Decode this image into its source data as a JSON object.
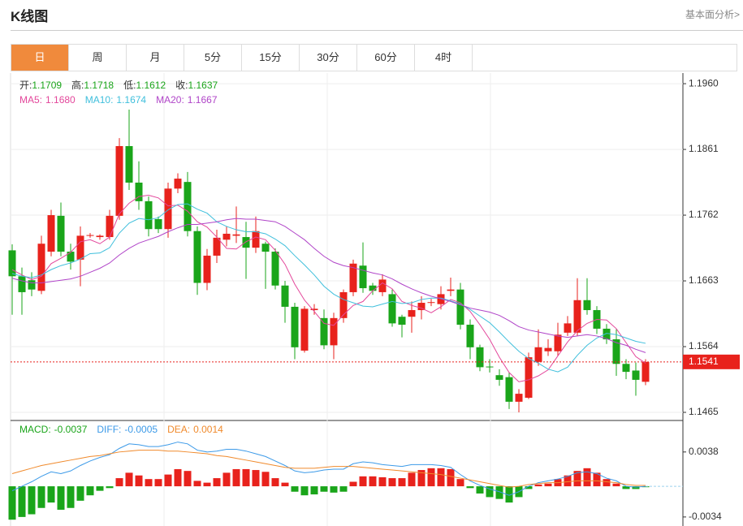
{
  "header": {
    "title": "K线图",
    "link": "基本面分析>"
  },
  "tabs": [
    "日",
    "周",
    "月",
    "5分",
    "15分",
    "30分",
    "60分",
    "4时"
  ],
  "chart_data": [
    {
      "type": "candlestick",
      "info": [
        {
          "label": "开:",
          "value": "1.1709"
        },
        {
          "label": "高:",
          "value": "1.1718"
        },
        {
          "label": "低:",
          "value": "1.1612"
        },
        {
          "label": "收:",
          "value": "1.1637"
        }
      ],
      "ylim": [
        1.1454,
        1.1976
      ],
      "yticks": [
        {
          "value": 1.196,
          "label": "1.1960"
        },
        1.1861,
        1.1762,
        1.1663,
        1.1564,
        1.1465
      ],
      "grid": true,
      "up_color": "#e8221c",
      "down_color": "#1aa51a",
      "last_price": 1.1541,
      "open": [
        1.1709,
        1.167,
        1.1664,
        1.1648,
        1.1707,
        1.1761,
        1.1707,
        1.1695,
        1.1731,
        1.1729,
        1.1729,
        1.1761,
        1.1866,
        1.1811,
        1.1783,
        1.1756,
        1.1741,
        1.1802,
        1.1812,
        1.1738,
        1.166,
        1.1701,
        1.1725,
        1.1731,
        1.1729,
        1.1713,
        1.1719,
        1.1707,
        1.1656,
        1.1624,
        1.1558,
        1.1619,
        1.1607,
        1.1566,
        1.1607,
        1.1646,
        1.1686,
        1.1656,
        1.1646,
        1.1643,
        1.1609,
        1.1609,
        1.1619,
        1.163,
        1.1628,
        1.1648,
        1.165,
        1.1597,
        1.1563,
        1.1534,
        1.1521,
        1.1518,
        1.1481,
        1.1487,
        1.1541,
        1.1557,
        1.1557,
        1.1585,
        1.1585,
        1.1634,
        1.1619,
        1.1591,
        1.1575,
        1.1538,
        1.1528,
        1.1511
      ],
      "high": [
        1.1718,
        1.1683,
        1.1676,
        1.1731,
        1.177,
        1.1781,
        1.1719,
        1.1745,
        1.1735,
        1.1733,
        1.177,
        1.1878,
        1.1921,
        1.1843,
        1.179,
        1.176,
        1.1811,
        1.1825,
        1.1827,
        1.1745,
        1.1711,
        1.174,
        1.1745,
        1.1775,
        1.1752,
        1.176,
        1.1722,
        1.1712,
        1.1663,
        1.163,
        1.1625,
        1.1628,
        1.162,
        1.1615,
        1.165,
        1.1695,
        1.1721,
        1.166,
        1.1673,
        1.165,
        1.1612,
        1.1632,
        1.164,
        1.1636,
        1.1655,
        1.1668,
        1.166,
        1.1605,
        1.1567,
        1.1545,
        1.153,
        1.1525,
        1.15,
        1.1555,
        1.159,
        1.1575,
        1.16,
        1.161,
        1.1667,
        1.1667,
        1.1625,
        1.1598,
        1.159,
        1.1545,
        1.154,
        1.1545
      ],
      "low": [
        1.1612,
        1.1612,
        1.164,
        1.1643,
        1.17,
        1.17,
        1.168,
        1.1655,
        1.1728,
        1.1725,
        1.1725,
        1.1755,
        1.18,
        1.177,
        1.173,
        1.1735,
        1.1728,
        1.1795,
        1.173,
        1.1642,
        1.1649,
        1.169,
        1.1715,
        1.172,
        1.1666,
        1.1705,
        1.1651,
        1.165,
        1.16,
        1.1545,
        1.1555,
        1.1612,
        1.156,
        1.1545,
        1.16,
        1.164,
        1.1645,
        1.1642,
        1.164,
        1.1594,
        1.1578,
        1.1585,
        1.1605,
        1.1625,
        1.162,
        1.164,
        1.159,
        1.1545,
        1.1527,
        1.1525,
        1.1505,
        1.147,
        1.1465,
        1.1485,
        1.1535,
        1.155,
        1.155,
        1.158,
        1.158,
        1.1612,
        1.1583,
        1.1568,
        1.152,
        1.1515,
        1.149,
        1.1506
      ],
      "close": [
        1.167,
        1.1646,
        1.165,
        1.1719,
        1.1762,
        1.1707,
        1.1692,
        1.1731,
        1.1732,
        1.1731,
        1.1761,
        1.1866,
        1.1811,
        1.1783,
        1.1741,
        1.1741,
        1.1802,
        1.1817,
        1.1738,
        1.166,
        1.1701,
        1.1728,
        1.1734,
        1.1733,
        1.1713,
        1.1738,
        1.1707,
        1.1656,
        1.1624,
        1.1563,
        1.1621,
        1.1621,
        1.1566,
        1.1607,
        1.1646,
        1.1689,
        1.1652,
        1.1648,
        1.1665,
        1.1599,
        1.1597,
        1.1619,
        1.163,
        1.1631,
        1.1643,
        1.165,
        1.1597,
        1.1563,
        1.1533,
        1.1533,
        1.1514,
        1.1481,
        1.1493,
        1.1548,
        1.1563,
        1.1562,
        1.1582,
        1.1599,
        1.1634,
        1.1619,
        1.1591,
        1.1575,
        1.1538,
        1.1526,
        1.1514,
        1.1541
      ],
      "series": [
        {
          "name": "MA5:",
          "color": "#e3479b",
          "last_value": "1.1680",
          "values": [
            1.168,
            1.1672,
            1.1665,
            1.167,
            1.1689,
            1.1697,
            1.1706,
            1.1722,
            1.1725,
            1.1719,
            1.1729,
            1.1764,
            1.178,
            1.179,
            1.1792,
            1.1788,
            1.1776,
            1.1777,
            1.1768,
            1.1752,
            1.1744,
            1.1729,
            1.1712,
            1.1711,
            1.1722,
            1.1729,
            1.1725,
            1.1709,
            1.1688,
            1.1658,
            1.1634,
            1.1617,
            1.1599,
            1.1596,
            1.1612,
            1.1626,
            1.1632,
            1.1648,
            1.166,
            1.1651,
            1.1632,
            1.1626,
            1.1622,
            1.1615,
            1.1624,
            1.1635,
            1.163,
            1.1617,
            1.1597,
            1.1575,
            1.1548,
            1.1525,
            1.1511,
            1.1514,
            1.152,
            1.1529,
            1.155,
            1.1571,
            1.1588,
            1.1599,
            1.1605,
            1.1604,
            1.1591,
            1.157,
            1.1549,
            1.1539
          ]
        },
        {
          "name": "MA10:",
          "color": "#3fbfdc",
          "last_value": "1.1674",
          "values": [
            1.1674,
            1.167,
            1.1668,
            1.1672,
            1.168,
            1.1686,
            1.169,
            1.1696,
            1.1704,
            1.1705,
            1.1713,
            1.1735,
            1.175,
            1.1757,
            1.1755,
            1.1758,
            1.177,
            1.1778,
            1.1779,
            1.1771,
            1.1765,
            1.1752,
            1.1745,
            1.174,
            1.1737,
            1.1737,
            1.1734,
            1.1726,
            1.1716,
            1.1701,
            1.1687,
            1.1672,
            1.1655,
            1.1643,
            1.1635,
            1.163,
            1.1625,
            1.1624,
            1.1628,
            1.1632,
            1.1629,
            1.163,
            1.1635,
            1.1637,
            1.1637,
            1.1633,
            1.1628,
            1.162,
            1.161,
            1.16,
            1.1586,
            1.1571,
            1.1557,
            1.1546,
            1.1539,
            1.153,
            1.1526,
            1.1533,
            1.1551,
            1.1566,
            1.1577,
            1.1584,
            1.1582,
            1.1577,
            1.1572,
            1.1569
          ]
        },
        {
          "name": "MA20:",
          "color": "#b044c8",
          "last_value": "1.1667",
          "values": [
            1.1667,
            1.1663,
            1.166,
            1.166,
            1.1662,
            1.1664,
            1.1666,
            1.167,
            1.1676,
            1.1682,
            1.169,
            1.1702,
            1.1712,
            1.172,
            1.1725,
            1.173,
            1.1737,
            1.1743,
            1.1748,
            1.1748,
            1.175,
            1.1752,
            1.1755,
            1.1757,
            1.1756,
            1.1756,
            1.1754,
            1.1752,
            1.1745,
            1.1735,
            1.1725,
            1.1712,
            1.17,
            1.1691,
            1.1686,
            1.1683,
            1.1679,
            1.1675,
            1.1672,
            1.1666,
            1.1658,
            1.1651,
            1.1645,
            1.164,
            1.1636,
            1.1632,
            1.1627,
            1.1622,
            1.1619,
            1.1616,
            1.1611,
            1.1603,
            1.1594,
            1.1589,
            1.1586,
            1.1583,
            1.158,
            1.1578,
            1.158,
            1.1582,
            1.158,
            1.1576,
            1.157,
            1.1566,
            1.156,
            1.1555
          ]
        }
      ]
    },
    {
      "type": "macd",
      "ylim": [
        -0.0044,
        0.0072
      ],
      "yticks": [
        0.0038,
        -0.0034
      ],
      "series": [
        {
          "name": "MACD:",
          "color": "#1aa51a",
          "up_color": "#e8221c",
          "down_color": "#1aa51a",
          "last_value": "-0.0037",
          "values": [
            -0.0037,
            -0.0034,
            -0.0031,
            -0.0024,
            -0.0018,
            -0.0026,
            -0.0024,
            -0.0016,
            -0.001,
            -0.0005,
            -0.0002,
            0.0009,
            0.0015,
            0.0012,
            0.0008,
            0.0008,
            0.0013,
            0.0019,
            0.0017,
            0.0006,
            0.0004,
            0.0009,
            0.0015,
            0.0019,
            0.0019,
            0.0018,
            0.0016,
            0.0009,
            0.0004,
            -0.0006,
            -0.001,
            -0.0009,
            -0.0006,
            -0.0007,
            -0.0006,
            0.0005,
            0.0011,
            0.0011,
            0.001,
            0.0009,
            0.0009,
            0.0015,
            0.0018,
            0.002,
            0.002,
            0.0019,
            0.0008,
            -0.0002,
            -0.0008,
            -0.0012,
            -0.0014,
            -0.0018,
            -0.0012,
            -0.0003,
            0.0002,
            0.0003,
            0.0008,
            0.0012,
            0.0017,
            0.002,
            0.0015,
            0.0008,
            0.0003,
            -0.0003,
            -0.0003,
            -0.0001
          ]
        },
        {
          "name": "DIFF:",
          "color": "#3c9ae8",
          "last_value": "-0.0005",
          "values": [
            -0.0005,
            0.0,
            0.0005,
            0.0011,
            0.0016,
            0.0014,
            0.0017,
            0.0023,
            0.0028,
            0.0032,
            0.0035,
            0.0042,
            0.0047,
            0.0046,
            0.0044,
            0.0044,
            0.0046,
            0.0049,
            0.0047,
            0.004,
            0.0038,
            0.0039,
            0.0041,
            0.0041,
            0.0039,
            0.0036,
            0.0033,
            0.0028,
            0.0023,
            0.0017,
            0.0015,
            0.0016,
            0.0018,
            0.0019,
            0.0019,
            0.0025,
            0.0027,
            0.0026,
            0.0024,
            0.0023,
            0.0022,
            0.0024,
            0.0024,
            0.0024,
            0.0023,
            0.0021,
            0.0013,
            0.0006,
            0.0001,
            -0.0003,
            -0.0006,
            -0.001,
            -0.0006,
            0.0,
            0.0004,
            0.0006,
            0.0008,
            0.0011,
            0.0015,
            0.0016,
            0.0014,
            0.0009,
            0.0006,
            0.0,
            -0.0001,
            0.0
          ]
        },
        {
          "name": "DEA:",
          "color": "#f08a2c",
          "last_value": "0.0014",
          "values": [
            0.0014,
            0.0017,
            0.002,
            0.0023,
            0.0025,
            0.0027,
            0.0029,
            0.0031,
            0.0033,
            0.0034,
            0.0036,
            0.0038,
            0.0039,
            0.004,
            0.004,
            0.004,
            0.0039,
            0.0039,
            0.0038,
            0.0037,
            0.0036,
            0.0034,
            0.0033,
            0.0031,
            0.0029,
            0.0027,
            0.0025,
            0.0023,
            0.0021,
            0.002,
            0.002,
            0.002,
            0.0021,
            0.0022,
            0.0022,
            0.0022,
            0.0021,
            0.002,
            0.0019,
            0.0018,
            0.0017,
            0.0016,
            0.0015,
            0.0014,
            0.0013,
            0.0011,
            0.0009,
            0.0007,
            0.0005,
            0.0003,
            0.0001,
            -0.0001,
            0.0,
            0.0002,
            0.0003,
            0.0004,
            0.0004,
            0.0005,
            0.0006,
            0.0006,
            0.0006,
            0.0005,
            0.0004,
            0.0002,
            0.0001,
            0.0001
          ]
        }
      ]
    }
  ]
}
